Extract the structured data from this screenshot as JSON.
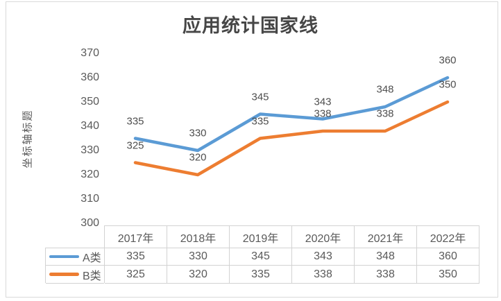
{
  "chart_data": {
    "type": "line",
    "title": "应用统计国家线",
    "ylabel": "坐标轴标题",
    "xlabel": "",
    "categories": [
      "2017年",
      "2018年",
      "2019年",
      "2020年",
      "2021年",
      "2022年"
    ],
    "series": [
      {
        "name": "A类",
        "color": "#5B9BD5",
        "values": [
          335,
          330,
          345,
          343,
          348,
          360
        ]
      },
      {
        "name": "B类",
        "color": "#ED7D31",
        "values": [
          325,
          320,
          335,
          338,
          338,
          350
        ]
      }
    ],
    "ylim": [
      300,
      370
    ],
    "y_ticks": [
      370,
      360,
      350,
      340,
      330,
      320,
      310,
      300
    ],
    "grid": false,
    "data_labels": "above",
    "legend_position": "data-table-left"
  }
}
